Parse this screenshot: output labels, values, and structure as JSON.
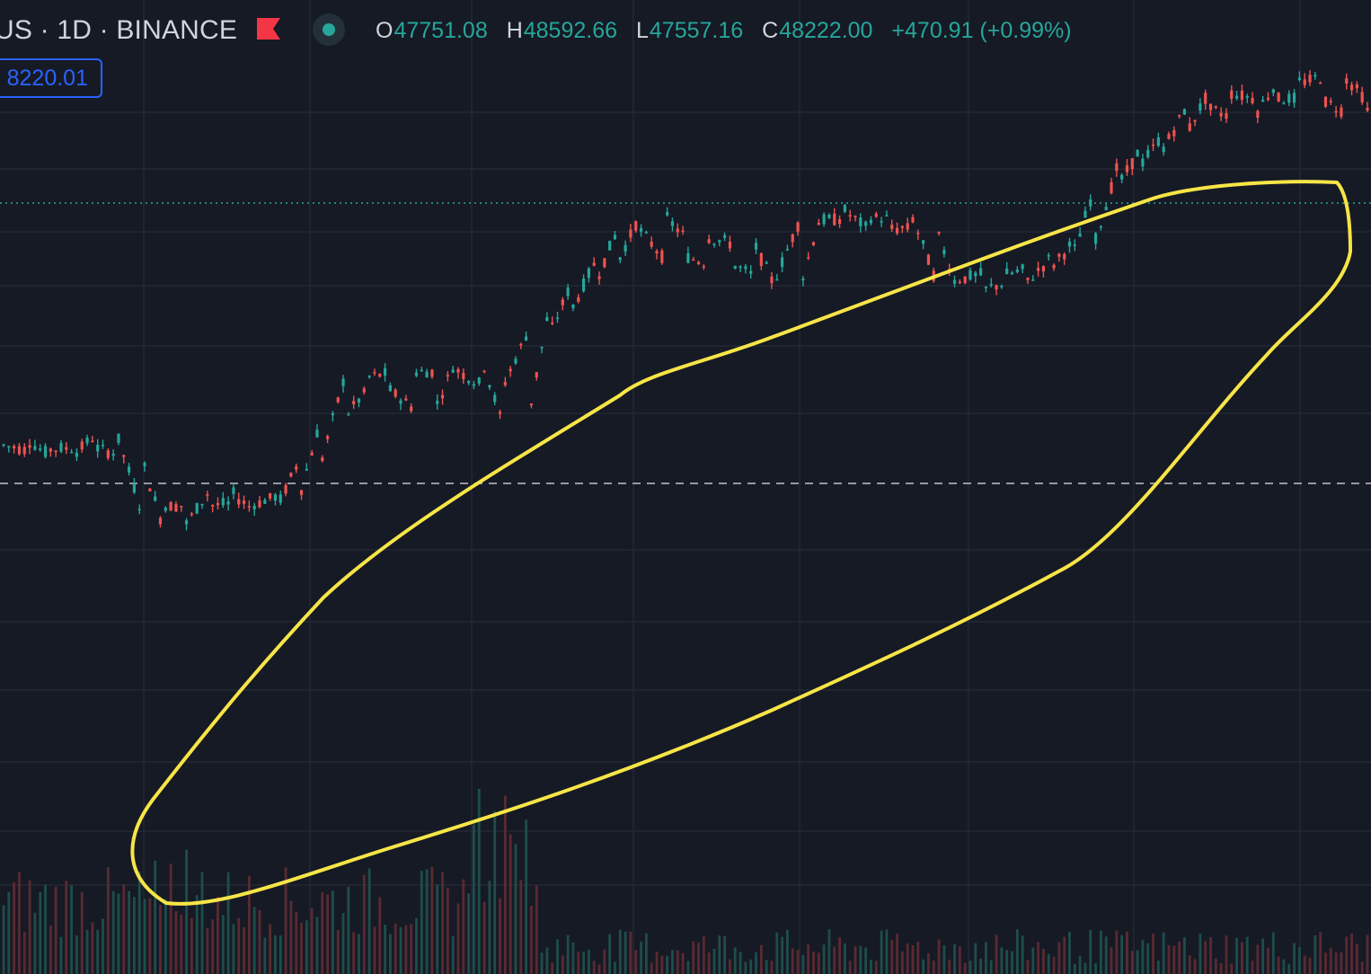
{
  "header": {
    "symbol_partial": "US · 1D · BINANCE",
    "ohlc": {
      "open_label": "O",
      "open": "47751.08",
      "high_label": "H",
      "high": "48592.66",
      "low_label": "L",
      "low": "47557.16",
      "close_label": "C",
      "close": "48222.00",
      "change": "+470.91 (+0.99%)"
    },
    "price_tag": "8220.01",
    "icons": {
      "flag": "flag-icon",
      "status": "market-status-icon"
    }
  },
  "colors": {
    "background": "#161a25",
    "grid": "#232735",
    "up": "#26a69a",
    "down": "#ef5350",
    "annotation": "#f7e547",
    "price_box": "#2962ff"
  },
  "chart_data": {
    "type": "candlestick",
    "annotation": "yellow freehand ellipse enclosing the uptrend",
    "reference_line_price": 48592.66,
    "current_price": 48222.0,
    "candles_sampled": [
      {
        "o": 30100,
        "c": 30600
      },
      {
        "o": 30600,
        "c": 29800
      },
      {
        "o": 29800,
        "c": 29300
      },
      {
        "o": 29300,
        "c": 29900
      },
      {
        "o": 29900,
        "c": 30800
      },
      {
        "o": 30800,
        "c": 29500
      },
      {
        "o": 29500,
        "c": 25500
      },
      {
        "o": 25500,
        "c": 24000
      },
      {
        "o": 24000,
        "c": 25500
      },
      {
        "o": 25500,
        "c": 26500
      },
      {
        "o": 26500,
        "c": 25600
      },
      {
        "o": 25600,
        "c": 25200
      },
      {
        "o": 25200,
        "c": 26200
      },
      {
        "o": 26200,
        "c": 29000
      },
      {
        "o": 29000,
        "c": 32300
      },
      {
        "o": 32300,
        "c": 35300
      },
      {
        "o": 35300,
        "c": 34300
      },
      {
        "o": 34300,
        "c": 35600
      },
      {
        "o": 35600,
        "c": 33000
      },
      {
        "o": 33000,
        "c": 35800
      },
      {
        "o": 35800,
        "c": 37000
      },
      {
        "o": 37000,
        "c": 34700
      },
      {
        "o": 34700,
        "c": 31400
      },
      {
        "o": 31400,
        "c": 38500
      },
      {
        "o": 38500,
        "c": 40500
      },
      {
        "o": 40500,
        "c": 42500
      },
      {
        "o": 42500,
        "c": 44000
      },
      {
        "o": 44000,
        "c": 46500
      },
      {
        "o": 46500,
        "c": 47700
      },
      {
        "o": 47700,
        "c": 44500
      },
      {
        "o": 44500,
        "c": 46000
      },
      {
        "o": 46000,
        "c": 44000
      },
      {
        "o": 44000,
        "c": 45500
      },
      {
        "o": 45500,
        "c": 43000
      },
      {
        "o": 43000,
        "c": 42000
      },
      {
        "o": 42000,
        "c": 47200
      },
      {
        "o": 47200,
        "c": 48000
      },
      {
        "o": 48000,
        "c": 47500
      },
      {
        "o": 47500,
        "c": 46600
      },
      {
        "o": 46600,
        "c": 47400
      },
      {
        "o": 47400,
        "c": 46700
      },
      {
        "o": 46700,
        "c": 42800
      },
      {
        "o": 42800,
        "c": 41900
      },
      {
        "o": 41900,
        "c": 43100
      },
      {
        "o": 43100,
        "c": 42500
      },
      {
        "o": 42500,
        "c": 43500
      },
      {
        "o": 43500,
        "c": 44300
      },
      {
        "o": 44300,
        "c": 45500
      },
      {
        "o": 45500,
        "c": 49800
      },
      {
        "o": 49800,
        "c": 51400
      },
      {
        "o": 51400,
        "c": 52700
      },
      {
        "o": 52700,
        "c": 53800
      },
      {
        "o": 53800,
        "c": 55800
      },
      {
        "o": 55800,
        "c": 57000
      },
      {
        "o": 57000,
        "c": 55200
      },
      {
        "o": 55200,
        "c": 56600
      },
      {
        "o": 56600,
        "c": 57800
      },
      {
        "o": 57800,
        "c": 56500
      },
      {
        "o": 56500,
        "c": 58200
      },
      {
        "o": 58200,
        "c": 55600
      },
      {
        "o": 55600,
        "c": 56400
      }
    ]
  }
}
